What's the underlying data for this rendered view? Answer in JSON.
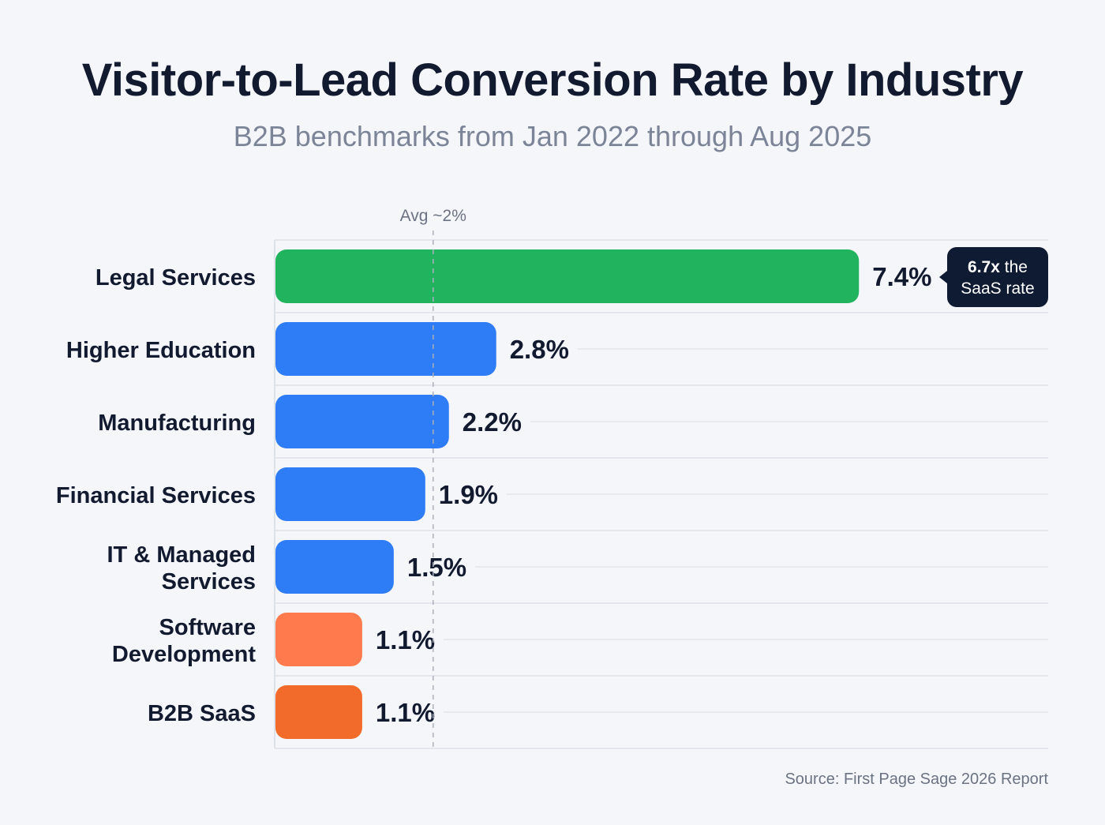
{
  "chart_data": {
    "type": "bar",
    "orientation": "horizontal",
    "title": "Visitor-to-Lead Conversion Rate by Industry",
    "subtitle": "B2B benchmarks from Jan 2022 through Aug 2025",
    "categories": [
      [
        "Legal Services"
      ],
      [
        "Higher Education"
      ],
      [
        "Manufacturing"
      ],
      [
        "Financial Services"
      ],
      [
        "IT & Managed",
        "Services"
      ],
      [
        "Software",
        "Development"
      ],
      [
        "B2B SaaS"
      ]
    ],
    "values": [
      7.4,
      2.8,
      2.2,
      1.9,
      1.5,
      1.1,
      1.1
    ],
    "labels": [
      "7.4%",
      "2.8%",
      "2.2%",
      "1.9%",
      "1.5%",
      "1.1%",
      "1.1%"
    ],
    "colors": [
      "#22b35e",
      "#2e7cf6",
      "#2e7cf6",
      "#2e7cf6",
      "#2e7cf6",
      "#ff7a4d",
      "#f26b2a"
    ],
    "xlim": [
      0,
      9.8
    ],
    "reference_line": {
      "value": 2,
      "label": "Avg ~2%"
    },
    "annotation": {
      "bold": "6.7x",
      "text1": " the",
      "text2": "SaaS rate"
    },
    "source": "Source: First Page Sage 2026 Report"
  }
}
